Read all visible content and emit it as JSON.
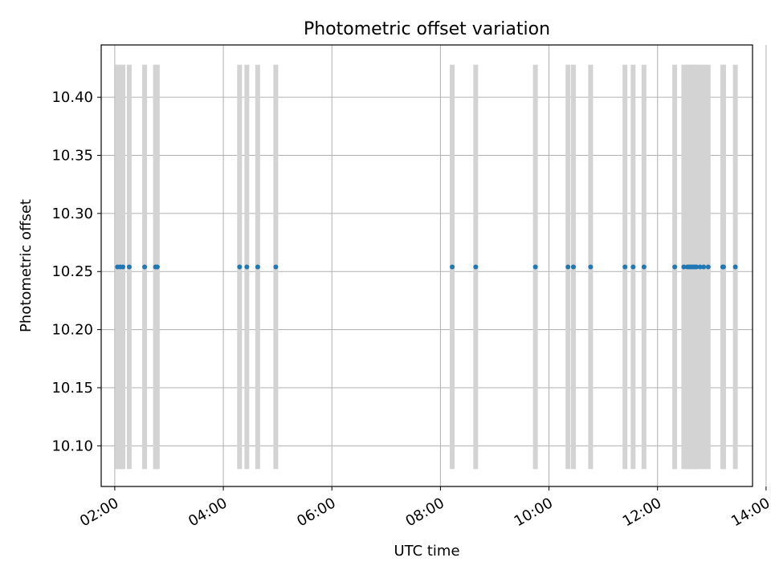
{
  "chart_data": {
    "type": "scatter",
    "title": "Photometric offset variation",
    "xlabel": "UTC time",
    "ylabel": "Photometric offset",
    "x_ticks": [
      "02:00",
      "04:00",
      "06:00",
      "08:00",
      "10:00",
      "12:00",
      "14:00"
    ],
    "y_ticks": [
      "10.10",
      "10.15",
      "10.20",
      "10.25",
      "10.30",
      "10.35",
      "10.40"
    ],
    "xlim": [
      "01:45",
      "13:45"
    ],
    "ylim": [
      10.065,
      10.445
    ],
    "grid": true,
    "bar_range": [
      10.08,
      10.428
    ],
    "colors": {
      "points": "#1f77b4",
      "bars": "#d3d3d3",
      "grid": "#b0b0b0",
      "axes": "#000000"
    },
    "x": [
      "02:03",
      "02:06",
      "02:09",
      "02:16",
      "02:33",
      "02:45",
      "02:47",
      "04:18",
      "04:26",
      "04:38",
      "04:58",
      "08:13",
      "08:39",
      "09:45",
      "10:21",
      "10:27",
      "10:46",
      "11:24",
      "11:33",
      "11:45",
      "12:19",
      "12:29",
      "12:33",
      "12:35",
      "12:37",
      "12:39",
      "12:41",
      "12:43",
      "12:47",
      "12:51",
      "12:56",
      "13:12",
      "13:13",
      "13:26"
    ],
    "y": [
      10.254,
      10.254,
      10.254,
      10.254,
      10.254,
      10.254,
      10.254,
      10.254,
      10.254,
      10.254,
      10.254,
      10.254,
      10.254,
      10.254,
      10.254,
      10.254,
      10.254,
      10.254,
      10.254,
      10.254,
      10.254,
      10.254,
      10.254,
      10.254,
      10.254,
      10.254,
      10.254,
      10.254,
      10.254,
      10.254,
      10.254,
      10.254,
      10.254,
      10.254
    ]
  }
}
